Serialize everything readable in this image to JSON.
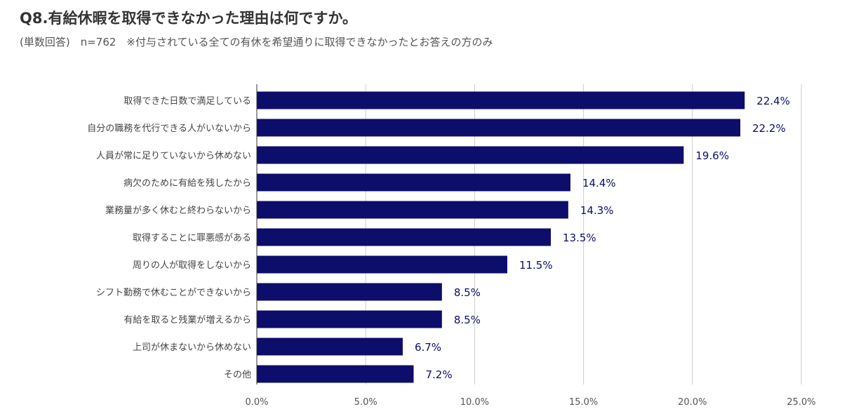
{
  "title": "Q8.有給休暇を取得できなかった理由は何ですか。",
  "subtitle": "(単数回答)　n=762　※付与されている全ての有休を希望通りに取得できなかったとお答えの方のみ",
  "chart_data": {
    "type": "bar",
    "orientation": "horizontal",
    "categories": [
      "取得できた日数で満足している",
      "自分の職務を代行できる人がいないから",
      "人員が常に足りていないから休めない",
      "病欠のために有給を残したから",
      "業務量が多く休むと終わらないから",
      "取得することに罪悪感がある",
      "周りの人が取得をしないから",
      "シフト勤務で休むことができないから",
      "有給を取ると残業が増えるから",
      "上司が休まないから休めない",
      "その他"
    ],
    "values": [
      22.4,
      22.2,
      19.6,
      14.4,
      14.3,
      13.5,
      11.5,
      8.5,
      8.5,
      6.7,
      7.2
    ],
    "value_labels": [
      "22.4%",
      "22.2%",
      "19.6%",
      "14.4%",
      "14.3%",
      "13.5%",
      "11.5%",
      "8.5%",
      "8.5%",
      "6.7%",
      "7.2%"
    ],
    "xlim": [
      0,
      25
    ],
    "ticks": [
      0,
      5,
      10,
      15,
      20,
      25
    ],
    "tick_labels": [
      "0.0%",
      "5.0%",
      "10.0%",
      "15.0%",
      "20.0%",
      "25.0%"
    ],
    "grid": true,
    "bar_color": "#0d0d6b",
    "label_color": "#0d0d6b"
  }
}
